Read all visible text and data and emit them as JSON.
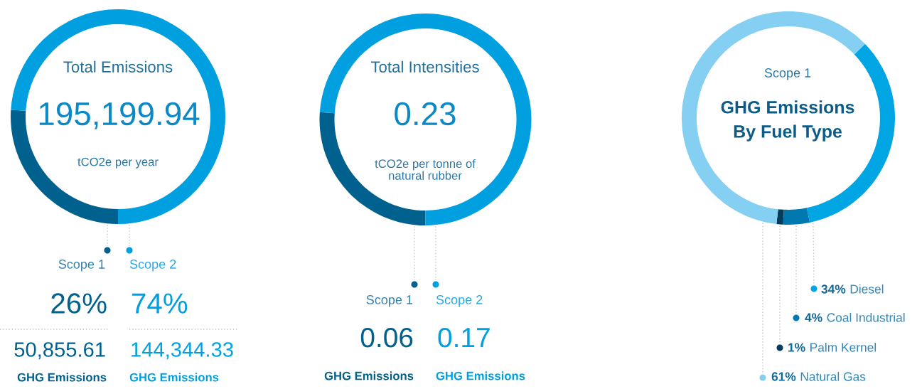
{
  "chart_data": [
    {
      "type": "donut",
      "title": "Total Emissions",
      "subtitle": "tCO2e per year",
      "categories": [
        "Scope 1",
        "Scope 2"
      ],
      "values": [
        26,
        74
      ],
      "colors": [
        "#00618e",
        "#00a0e0"
      ],
      "value_labels": [
        "26%",
        "74%"
      ],
      "legend": "bottom",
      "annotations": [
        "195,199.94",
        "50,855.61",
        "144,344.33",
        "GHG Emissions",
        "GHG Emissions"
      ]
    },
    {
      "type": "donut",
      "title": "Total Intensities",
      "subtitle": "tCO2e per tonne of\nnatural rubber",
      "categories": [
        "Scope 1",
        "Scope 2"
      ],
      "values": [
        0.06,
        0.17
      ],
      "colors": [
        "#00618e",
        "#00a0e0"
      ],
      "data_labels": true,
      "legend": "bottom",
      "annotations": [
        "0.23",
        "GHG Emissions",
        "GHG Emissions"
      ]
    },
    {
      "type": "donut",
      "subtitle": "Scope 1",
      "title": "GHG Emissions\nBy Fuel Type",
      "categories": [
        "Diesel",
        "Coal Industrial",
        "Palm Kernel",
        "Natural Gas"
      ],
      "values": [
        34,
        4,
        1,
        61
      ],
      "colors": [
        "#00a5e3",
        "#0079b0",
        "#003d5c",
        "#85cff2"
      ],
      "value_labels": [
        "34%",
        "4%",
        "1%",
        "61%"
      ],
      "legend": "bottom right"
    }
  ]
}
